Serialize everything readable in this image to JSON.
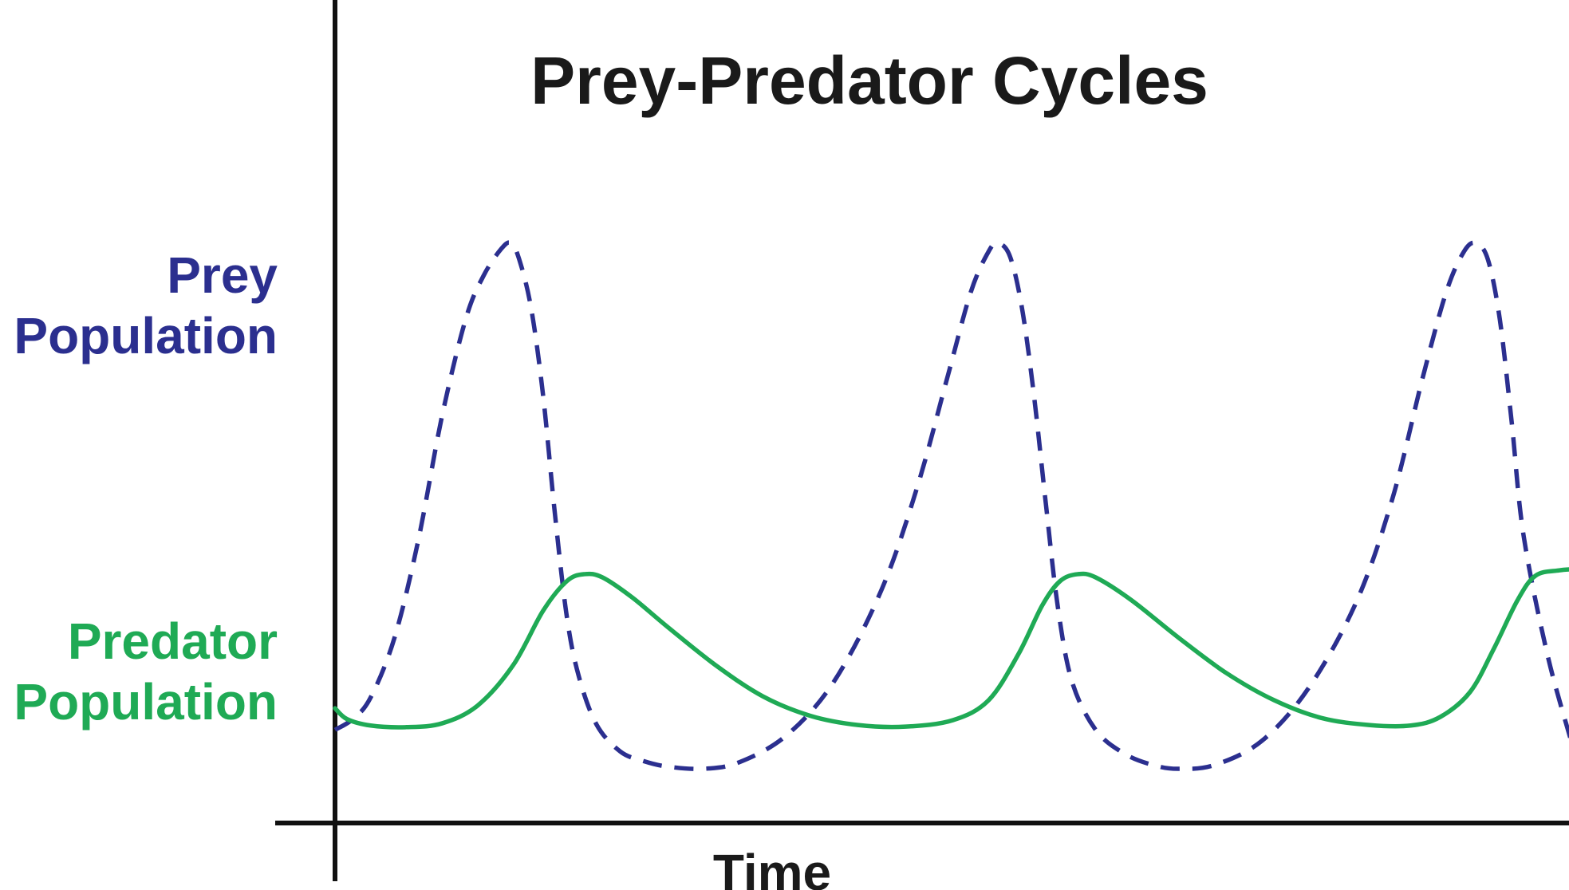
{
  "chart_data": {
    "type": "line",
    "title": "Prey-Predator Cycles",
    "xlabel": "Time",
    "ylabel": "",
    "xlim": [
      0,
      100
    ],
    "ylim": [
      0,
      100
    ],
    "grid": false,
    "legend": "left-side labels",
    "series": [
      {
        "name": "Prey Population",
        "label_lines": [
          "Prey",
          "Population"
        ],
        "color": "#2b2f8f",
        "style": "dashed",
        "points": [
          [
            0,
            10
          ],
          [
            1.5,
            12
          ],
          [
            3,
            16
          ],
          [
            5,
            27
          ],
          [
            7,
            45
          ],
          [
            9,
            68
          ],
          [
            11,
            86
          ],
          [
            12.5,
            94
          ],
          [
            14,
            99
          ],
          [
            14.8,
            100
          ],
          [
            15.5,
            97
          ],
          [
            16.5,
            88
          ],
          [
            17.5,
            72
          ],
          [
            18.5,
            50
          ],
          [
            19.5,
            31
          ],
          [
            20.5,
            20
          ],
          [
            22,
            11
          ],
          [
            24,
            6
          ],
          [
            26,
            4.2
          ],
          [
            28,
            3.2
          ],
          [
            31,
            2.8
          ],
          [
            34,
            4
          ],
          [
            38,
            9
          ],
          [
            42,
            19
          ],
          [
            46,
            36
          ],
          [
            49,
            55
          ],
          [
            51.5,
            75
          ],
          [
            53.5,
            91
          ],
          [
            55,
            98.5
          ],
          [
            55.8,
            100
          ],
          [
            56.8,
            97.5
          ],
          [
            57.8,
            88
          ],
          [
            58.8,
            72
          ],
          [
            59.8,
            52
          ],
          [
            60.8,
            33
          ],
          [
            62,
            19
          ],
          [
            64,
            10
          ],
          [
            66.5,
            5.5
          ],
          [
            69,
            3.4
          ],
          [
            71,
            2.8
          ],
          [
            74,
            3.5
          ],
          [
            78,
            8
          ],
          [
            82,
            18
          ],
          [
            86,
            34
          ],
          [
            89,
            53
          ],
          [
            91.5,
            75
          ],
          [
            93.5,
            91
          ],
          [
            95,
            98.5
          ],
          [
            96,
            100
          ],
          [
            97,
            97
          ],
          [
            98,
            86
          ],
          [
            99,
            67
          ],
          [
            100,
            46
          ],
          [
            102,
            24
          ],
          [
            104,
            8
          ]
        ]
      },
      {
        "name": "Predator Population",
        "label_lines": [
          "Predator",
          "Population"
        ],
        "color": "#1faa55",
        "style": "solid",
        "points": [
          [
            0,
            14
          ],
          [
            1,
            12
          ],
          [
            3,
            10.8
          ],
          [
            6,
            10.5
          ],
          [
            9,
            11.2
          ],
          [
            12,
            14.5
          ],
          [
            15,
            22
          ],
          [
            17.5,
            32
          ],
          [
            19.5,
            37.5
          ],
          [
            21,
            38.8
          ],
          [
            22.5,
            38.2
          ],
          [
            25,
            34.5
          ],
          [
            28,
            29
          ],
          [
            32,
            22
          ],
          [
            36,
            16.2
          ],
          [
            40,
            12.6
          ],
          [
            44,
            10.9
          ],
          [
            48,
            10.6
          ],
          [
            52,
            11.8
          ],
          [
            55,
            15.5
          ],
          [
            57.5,
            24
          ],
          [
            59.5,
            33
          ],
          [
            61,
            37.5
          ],
          [
            62.5,
            38.8
          ],
          [
            64,
            38.2
          ],
          [
            67,
            34
          ],
          [
            71,
            27
          ],
          [
            75,
            20.5
          ],
          [
            79,
            15.5
          ],
          [
            83,
            12.2
          ],
          [
            87,
            10.9
          ],
          [
            90.5,
            10.8
          ],
          [
            93,
            12.4
          ],
          [
            95.5,
            17
          ],
          [
            97.5,
            25
          ],
          [
            99.5,
            34
          ],
          [
            101,
            38.5
          ],
          [
            103,
            39.5
          ],
          [
            105,
            39.8
          ]
        ]
      }
    ]
  }
}
